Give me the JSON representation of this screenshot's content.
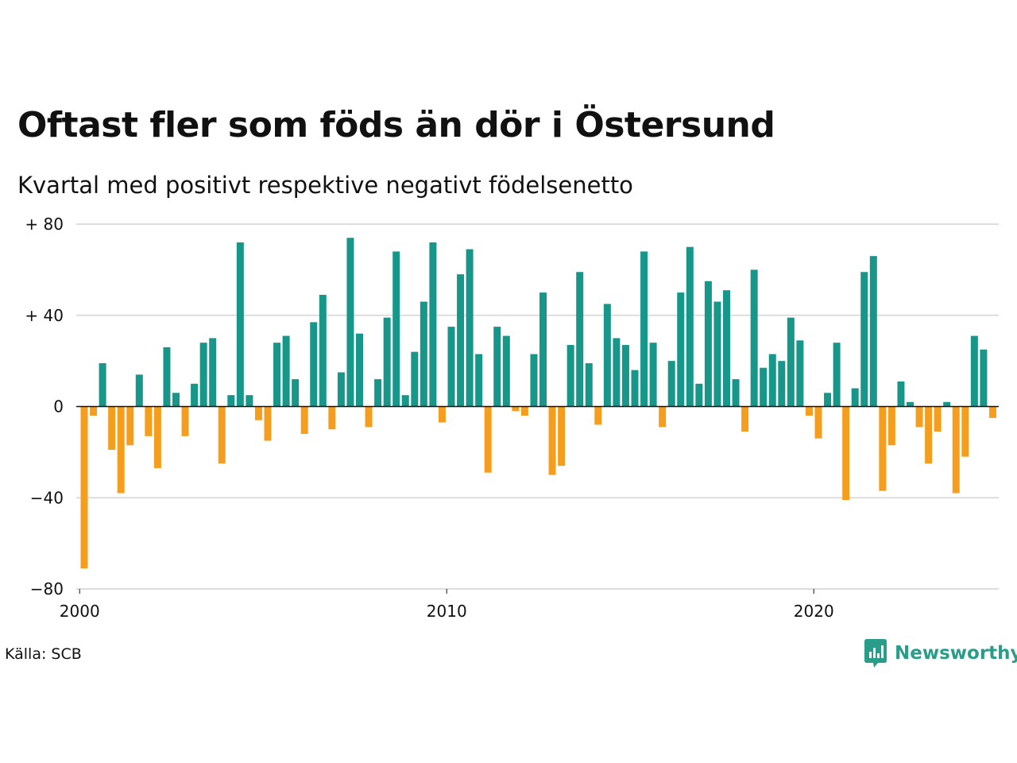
{
  "header": {
    "title": "Oftast fler som föds än dör i Östersund",
    "subtitle": "Kvartal med positivt respektive negativt födelsenetto"
  },
  "footer": {
    "source": "Källa: SCB",
    "brand": "Newsworthy"
  },
  "colors": {
    "positive": "#17968a",
    "negative": "#f59e1d",
    "grid": "#dddddd",
    "baseline": "#111111",
    "brand": "#2a9d8a"
  },
  "chart_data": {
    "type": "bar",
    "title": "Oftast fler som föds än dör i Östersund",
    "subtitle": "Kvartal med positivt respektive negativt födelsenetto",
    "xlabel": "",
    "ylabel": "",
    "ylim": [
      -80,
      80
    ],
    "yticks": [
      80,
      40,
      0,
      -40,
      -80
    ],
    "ytick_labels": [
      "+ 80",
      "+ 40",
      "0",
      "−40",
      "−80"
    ],
    "xticks": [
      2000,
      2010,
      2020
    ],
    "xtick_labels": [
      "2000",
      "2010",
      "2020"
    ],
    "grid": true,
    "start": "2000 Q1",
    "categories": [
      "2000 Q1",
      "2000 Q2",
      "2000 Q3",
      "2000 Q4",
      "2001 Q1",
      "2001 Q2",
      "2001 Q3",
      "2001 Q4",
      "2002 Q1",
      "2002 Q2",
      "2002 Q3",
      "2002 Q4",
      "2003 Q1",
      "2003 Q2",
      "2003 Q3",
      "2003 Q4",
      "2004 Q1",
      "2004 Q2",
      "2004 Q3",
      "2004 Q4",
      "2005 Q1",
      "2005 Q2",
      "2005 Q3",
      "2005 Q4",
      "2006 Q1",
      "2006 Q2",
      "2006 Q3",
      "2006 Q4",
      "2007 Q1",
      "2007 Q2",
      "2007 Q3",
      "2007 Q4",
      "2008 Q1",
      "2008 Q2",
      "2008 Q3",
      "2008 Q4",
      "2009 Q1",
      "2009 Q2",
      "2009 Q3",
      "2009 Q4",
      "2010 Q1",
      "2010 Q2",
      "2010 Q3",
      "2010 Q4",
      "2011 Q1",
      "2011 Q2",
      "2011 Q3",
      "2011 Q4",
      "2012 Q1",
      "2012 Q2",
      "2012 Q3",
      "2012 Q4",
      "2013 Q1",
      "2013 Q2",
      "2013 Q3",
      "2013 Q4",
      "2014 Q1",
      "2014 Q2",
      "2014 Q3",
      "2014 Q4",
      "2015 Q1",
      "2015 Q2",
      "2015 Q3",
      "2015 Q4",
      "2016 Q1",
      "2016 Q2",
      "2016 Q3",
      "2016 Q4",
      "2017 Q1",
      "2017 Q2",
      "2017 Q3",
      "2017 Q4",
      "2018 Q1",
      "2018 Q2",
      "2018 Q3",
      "2018 Q4",
      "2019 Q1",
      "2019 Q2",
      "2019 Q3",
      "2019 Q4",
      "2020 Q1",
      "2020 Q2",
      "2020 Q3",
      "2020 Q4",
      "2021 Q1",
      "2021 Q2",
      "2021 Q3",
      "2021 Q4",
      "2022 Q1",
      "2022 Q2",
      "2022 Q3",
      "2022 Q4",
      "2023 Q1",
      "2023 Q2",
      "2023 Q3",
      "2023 Q4",
      "2024 Q1",
      "2024 Q2",
      "2024 Q3",
      "2024 Q4",
      "2025 Q1"
    ],
    "values": [
      -71,
      -4,
      19,
      -19,
      -38,
      -17,
      14,
      -13,
      -27,
      26,
      6,
      -13,
      10,
      28,
      30,
      -25,
      5,
      72,
      5,
      -6,
      -15,
      28,
      31,
      12,
      -12,
      37,
      49,
      -10,
      15,
      74,
      32,
      -9,
      12,
      39,
      68,
      5,
      24,
      46,
      72,
      -7,
      35,
      58,
      69,
      23,
      -29,
      35,
      31,
      -2,
      -4,
      23,
      50,
      -30,
      -26,
      27,
      59,
      19,
      -8,
      45,
      30,
      27,
      16,
      68,
      28,
      -9,
      20,
      50,
      70,
      10,
      55,
      46,
      51,
      12,
      -11,
      60,
      17,
      23,
      20,
      39,
      29,
      -4,
      -14,
      6,
      28,
      -41,
      8,
      59,
      66,
      -37,
      -17,
      11,
      2,
      -9,
      -25,
      -11,
      2,
      -38,
      -22,
      31,
      25,
      -5,
      0
    ]
  }
}
